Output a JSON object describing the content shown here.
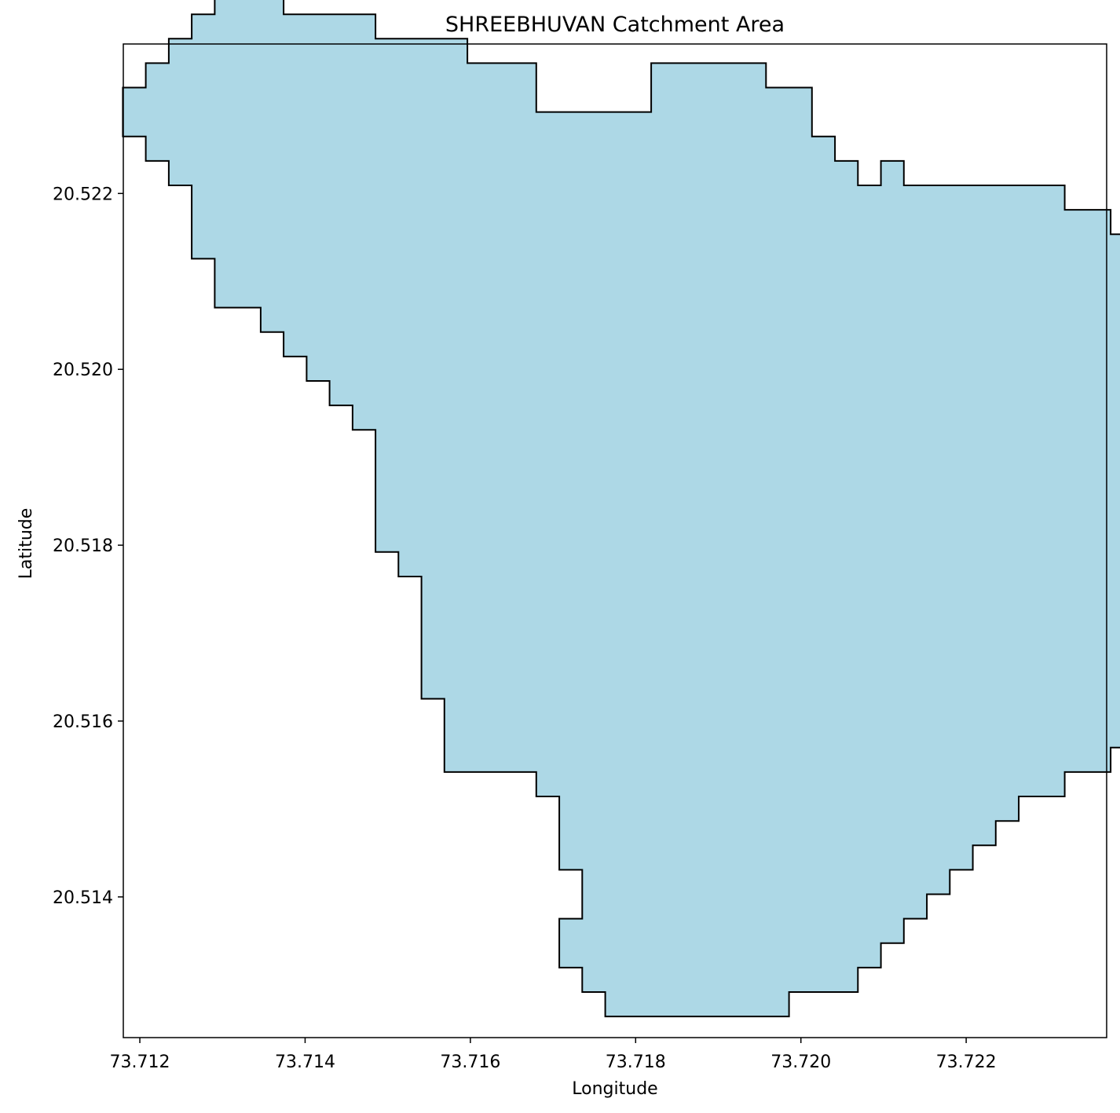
{
  "chart_data": {
    "type": "map",
    "title": "SHREEBHUVAN Catchment Area",
    "xlabel": "Longitude",
    "ylabel": "Latitude",
    "xlim": [
      73.7118,
      73.7237
    ],
    "ylim": [
      20.5124,
      20.5237
    ],
    "xticks": [
      {
        "value": 73.712,
        "label": "73.712"
      },
      {
        "value": 73.714,
        "label": "73.714"
      },
      {
        "value": 73.716,
        "label": "73.716"
      },
      {
        "value": 73.718,
        "label": "73.718"
      },
      {
        "value": 73.72,
        "label": "73.720"
      },
      {
        "value": 73.722,
        "label": "73.722"
      }
    ],
    "yticks": [
      {
        "value": 20.514,
        "label": "20.514"
      },
      {
        "value": 20.516,
        "label": "20.516"
      },
      {
        "value": 20.518,
        "label": "20.518"
      },
      {
        "value": 20.52,
        "label": "20.520"
      },
      {
        "value": 20.522,
        "label": "20.522"
      }
    ],
    "grid": false,
    "polygon": {
      "name": "SHREEBHUVAN",
      "fill": "#add8e6",
      "edge": "#000000",
      "grid_origin_lon": 73.71235,
      "grid_origin_lat": 20.51264,
      "cell_lon": 0.000278,
      "cell_lat": 0.000278,
      "vertices_cells": [
        [
          5,
          41
        ],
        [
          9,
          41
        ],
        [
          9,
          40
        ],
        [
          13,
          40
        ],
        [
          13,
          39
        ],
        [
          16,
          39
        ],
        [
          16,
          37
        ],
        [
          21,
          37
        ],
        [
          21,
          39
        ],
        [
          26,
          39
        ],
        [
          26,
          38
        ],
        [
          28,
          38
        ],
        [
          28,
          36
        ],
        [
          29,
          36
        ],
        [
          29,
          35
        ],
        [
          30,
          35
        ],
        [
          30,
          34
        ],
        [
          31,
          34
        ],
        [
          31,
          35
        ],
        [
          32,
          35
        ],
        [
          32,
          34
        ],
        [
          39,
          34
        ],
        [
          39,
          33
        ],
        [
          41,
          33
        ],
        [
          41,
          32
        ],
        [
          46,
          32
        ],
        [
          46,
          31
        ],
        [
          47,
          31
        ],
        [
          47,
          25
        ],
        [
          48,
          25
        ],
        [
          48,
          23
        ],
        [
          49,
          23
        ],
        [
          49,
          21
        ],
        [
          50,
          21
        ],
        [
          50,
          20
        ],
        [
          49,
          20
        ],
        [
          49,
          15
        ],
        [
          48,
          15
        ],
        [
          48,
          14
        ],
        [
          47,
          14
        ],
        [
          47,
          13
        ],
        [
          44,
          13
        ],
        [
          44,
          12
        ],
        [
          43,
          12
        ],
        [
          43,
          11
        ],
        [
          41,
          11
        ],
        [
          41,
          10
        ],
        [
          39,
          10
        ],
        [
          39,
          9
        ],
        [
          37,
          9
        ],
        [
          37,
          8
        ],
        [
          36,
          8
        ],
        [
          36,
          7
        ],
        [
          35,
          7
        ],
        [
          35,
          6
        ],
        [
          34,
          6
        ],
        [
          34,
          5
        ],
        [
          33,
          5
        ],
        [
          33,
          4
        ],
        [
          32,
          4
        ],
        [
          32,
          3
        ],
        [
          31,
          3
        ],
        [
          31,
          2
        ],
        [
          30,
          2
        ],
        [
          30,
          1
        ],
        [
          27,
          1
        ],
        [
          27,
          0
        ],
        [
          19,
          0
        ],
        [
          19,
          1
        ],
        [
          18,
          1
        ],
        [
          18,
          2
        ],
        [
          17,
          2
        ],
        [
          17,
          4
        ],
        [
          18,
          4
        ],
        [
          18,
          6
        ],
        [
          17,
          6
        ],
        [
          17,
          9
        ],
        [
          16,
          9
        ],
        [
          16,
          10
        ],
        [
          12,
          10
        ],
        [
          12,
          13
        ],
        [
          11,
          13
        ],
        [
          11,
          18
        ],
        [
          10,
          18
        ],
        [
          10,
          19
        ],
        [
          9,
          19
        ],
        [
          9,
          24
        ],
        [
          8,
          24
        ],
        [
          8,
          25
        ],
        [
          7,
          25
        ],
        [
          7,
          26
        ],
        [
          6,
          26
        ],
        [
          6,
          27
        ],
        [
          5,
          27
        ],
        [
          5,
          28
        ],
        [
          4,
          28
        ],
        [
          4,
          29
        ],
        [
          2,
          29
        ],
        [
          2,
          31
        ],
        [
          1,
          31
        ],
        [
          1,
          34
        ],
        [
          0,
          34
        ],
        [
          0,
          35
        ],
        [
          -1,
          35
        ],
        [
          -1,
          36
        ],
        [
          -2,
          36
        ],
        [
          -2,
          37
        ],
        [
          -2,
          38
        ],
        [
          -1,
          38
        ],
        [
          -1,
          39
        ],
        [
          0,
          39
        ],
        [
          0,
          40
        ],
        [
          1,
          40
        ],
        [
          1,
          41
        ],
        [
          2,
          41
        ],
        [
          2,
          42
        ],
        [
          4,
          42
        ],
        [
          4,
          42
        ],
        [
          5,
          42
        ],
        [
          5,
          41
        ]
      ]
    }
  }
}
